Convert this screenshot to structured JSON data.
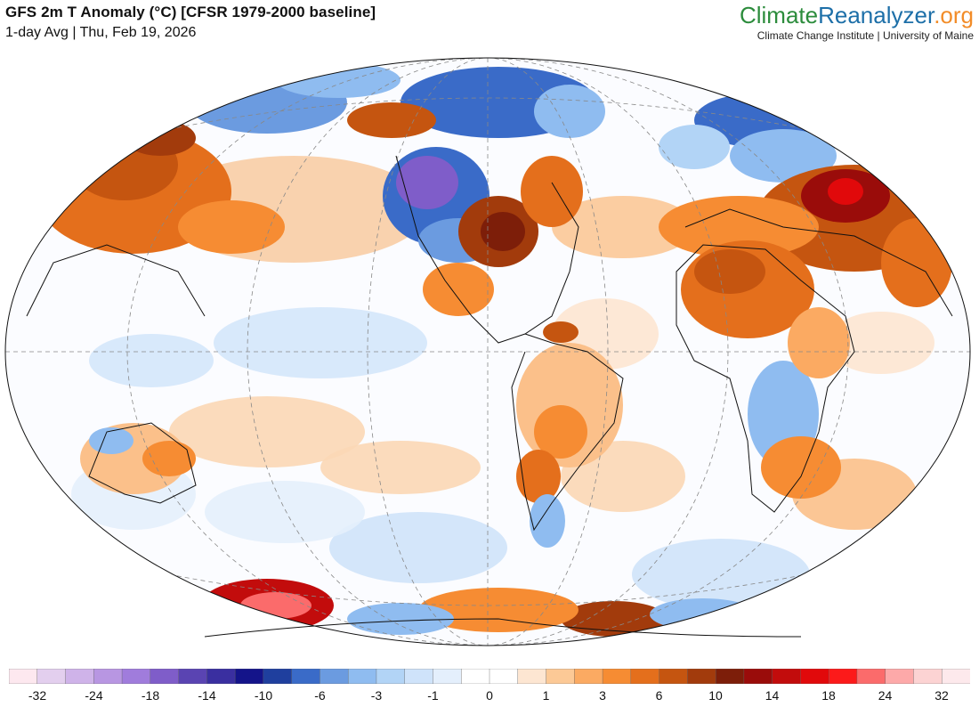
{
  "header": {
    "title": "GFS 2m T Anomaly (°C) [CFSR 1979-2000 baseline]",
    "subtitle": "1-day Avg | Thu, Feb 19, 2026"
  },
  "brand": {
    "logo_part1": "Climate",
    "logo_part2": "Reanalyzer",
    "logo_part3": ".org",
    "tagline": "Climate Change Institute | University of Maine"
  },
  "legend": {
    "colors": [
      "#fde8ef",
      "#e3cfee",
      "#cfb3e9",
      "#b896e2",
      "#a07cdc",
      "#7f5dc9",
      "#5a44b2",
      "#3a2fa0",
      "#14148a",
      "#1f3f9e",
      "#3a6bc8",
      "#6b9be0",
      "#8fbcf0",
      "#b2d4f6",
      "#cfe3fa",
      "#e4effc",
      "#ffffff",
      "#ffffff",
      "#fde6d2",
      "#fcc996",
      "#fbaa62",
      "#f68c33",
      "#e46f1c",
      "#c55510",
      "#a23b0c",
      "#7d1e09",
      "#9a0c0a",
      "#c20c0c",
      "#e1090b",
      "#fc1a1a",
      "#fb6b6b",
      "#fda9a9",
      "#fcd3d3",
      "#fde9ec"
    ],
    "labels": [
      "-32",
      "-24",
      "-18",
      "-14",
      "-10",
      "-6",
      "-3",
      "-1",
      "0",
      "1",
      "3",
      "6",
      "10",
      "14",
      "18",
      "24",
      "32"
    ]
  }
}
